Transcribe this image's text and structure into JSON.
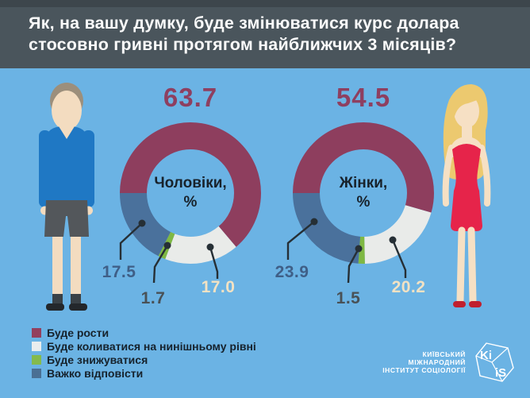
{
  "title": {
    "line1": "Як, на вашу думку, буде змінюватися курс долара",
    "line2": "стосовно гривні протягом найближчих 3 місяців?"
  },
  "chart_data": [
    {
      "type": "donut",
      "title": "Чоловіки, %",
      "title_lines": [
        "Чоловіки,",
        "%"
      ],
      "labels": [
        "Буде рости",
        "Буде коливатися на нинішньому рівні",
        "Буде знижуватися",
        "Важко відповісти"
      ],
      "values": [
        63.7,
        17.0,
        1.7,
        17.5
      ],
      "value_labels": [
        "63.7",
        "17.0",
        "1.7",
        "17.5"
      ],
      "colors": [
        "#8e3e5e",
        "#e9ebe9",
        "#7fb843",
        "#4a719c"
      ],
      "start_angle_deg": 270,
      "direction": "clockwise"
    },
    {
      "type": "donut",
      "title": "Жінки, %",
      "title_lines": [
        "Жінки,",
        "%"
      ],
      "labels": [
        "Буде рости",
        "Буде коливатися на нинішньому рівні",
        "Буде знижуватися",
        "Важко відповісти"
      ],
      "values": [
        54.5,
        20.2,
        1.5,
        23.9
      ],
      "value_labels": [
        "54.5",
        "20.2",
        "1.5",
        "23.9"
      ],
      "colors": [
        "#8e3e5e",
        "#e9ebe9",
        "#7fb843",
        "#4a719c"
      ],
      "start_angle_deg": 270,
      "direction": "clockwise"
    }
  ],
  "legend": {
    "items": [
      {
        "label": "Буде рости",
        "color": "#93405e"
      },
      {
        "label": "Буде коливатися на нинішньому рівні",
        "color": "#e9edee"
      },
      {
        "label": "Буде знижуватися",
        "color": "#84ba4d"
      },
      {
        "label": "Важко відповісти",
        "color": "#4a7094"
      }
    ]
  },
  "footer": {
    "org_lines": [
      "КИЇВСЬКИЙ",
      "МІЖНАРОДНИЙ",
      "ІНСТИТУТ СОЦІОЛОГІЇ"
    ],
    "logo_top": "Ki",
    "logo_bottom": "iS"
  }
}
